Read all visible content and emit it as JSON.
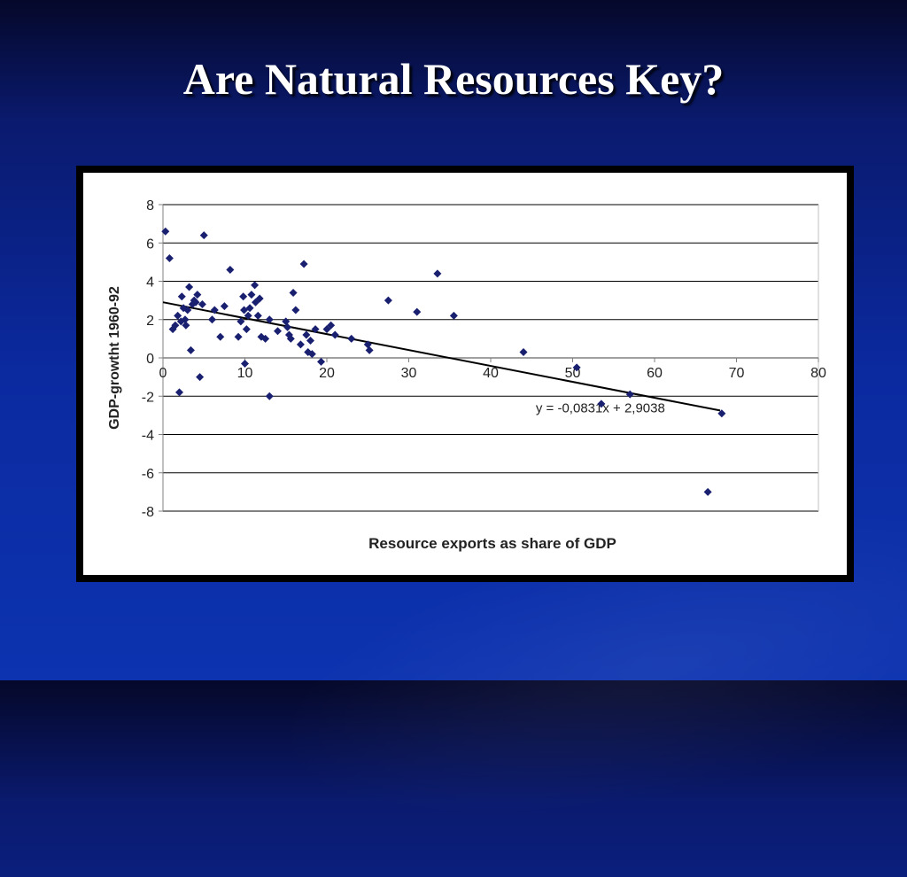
{
  "slide": {
    "title": "Are Natural Resources Key?"
  },
  "colors": {
    "point": "#1a2070",
    "trendline": "#000000",
    "grid": "#000000",
    "axis": "#808080"
  },
  "chart_data": {
    "type": "scatter",
    "title": "",
    "xlabel": "Resource exports as share of GDP",
    "ylabel": "GDP-growtht 1960-92",
    "xlim": [
      0,
      80
    ],
    "ylim": [
      -8,
      8
    ],
    "xticks": [
      0,
      10,
      20,
      30,
      40,
      50,
      60,
      70,
      80
    ],
    "yticks": [
      -8,
      -6,
      -4,
      -2,
      0,
      2,
      4,
      6,
      8
    ],
    "grid": "horizontal",
    "trendline": {
      "slope": -0.0831,
      "intercept": 2.9038,
      "x_range": [
        0,
        68
      ],
      "label": "y = -0,0831x + 2,9038"
    },
    "points": [
      [
        0.3,
        6.6
      ],
      [
        0.8,
        5.2
      ],
      [
        1.2,
        1.5
      ],
      [
        1.5,
        1.7
      ],
      [
        1.8,
        2.2
      ],
      [
        2.0,
        -1.8
      ],
      [
        2.2,
        1.9
      ],
      [
        2.3,
        3.2
      ],
      [
        2.5,
        2.6
      ],
      [
        2.7,
        2.0
      ],
      [
        2.8,
        1.7
      ],
      [
        3.0,
        2.5
      ],
      [
        3.2,
        3.7
      ],
      [
        3.4,
        0.4
      ],
      [
        3.6,
        2.8
      ],
      [
        3.8,
        3.0
      ],
      [
        4.0,
        2.9
      ],
      [
        4.2,
        3.3
      ],
      [
        4.5,
        -1.0
      ],
      [
        4.8,
        2.8
      ],
      [
        5.0,
        6.4
      ],
      [
        6.0,
        2.0
      ],
      [
        6.3,
        2.5
      ],
      [
        7.0,
        1.1
      ],
      [
        7.5,
        2.7
      ],
      [
        8.2,
        4.6
      ],
      [
        9.2,
        1.1
      ],
      [
        9.5,
        1.9
      ],
      [
        9.8,
        3.2
      ],
      [
        9.9,
        2.5
      ],
      [
        10.0,
        -0.3
      ],
      [
        10.2,
        1.5
      ],
      [
        10.4,
        2.2
      ],
      [
        10.6,
        2.6
      ],
      [
        10.8,
        3.3
      ],
      [
        11.2,
        3.8
      ],
      [
        11.3,
        2.9
      ],
      [
        11.6,
        2.2
      ],
      [
        11.8,
        3.1
      ],
      [
        12.0,
        1.1
      ],
      [
        12.5,
        1.0
      ],
      [
        13.0,
        2.0
      ],
      [
        13.0,
        -2.0
      ],
      [
        14.0,
        1.4
      ],
      [
        15.0,
        1.9
      ],
      [
        15.2,
        1.6
      ],
      [
        15.4,
        1.2
      ],
      [
        15.6,
        1.0
      ],
      [
        15.9,
        3.4
      ],
      [
        16.2,
        2.5
      ],
      [
        16.8,
        0.7
      ],
      [
        17.2,
        4.9
      ],
      [
        17.5,
        1.2
      ],
      [
        17.7,
        0.3
      ],
      [
        18.0,
        0.9
      ],
      [
        18.2,
        0.2
      ],
      [
        18.6,
        1.5
      ],
      [
        19.3,
        -0.2
      ],
      [
        20.0,
        1.5
      ],
      [
        20.5,
        1.7
      ],
      [
        21.0,
        1.2
      ],
      [
        23.0,
        1.0
      ],
      [
        25.0,
        0.7
      ],
      [
        25.2,
        0.4
      ],
      [
        27.5,
        3.0
      ],
      [
        31.0,
        2.4
      ],
      [
        33.5,
        4.4
      ],
      [
        35.5,
        2.2
      ],
      [
        44.0,
        0.3
      ],
      [
        50.5,
        -0.5
      ],
      [
        53.5,
        -2.4
      ],
      [
        57.0,
        -1.9
      ],
      [
        66.5,
        -7.0
      ],
      [
        68.2,
        -2.9
      ]
    ]
  }
}
